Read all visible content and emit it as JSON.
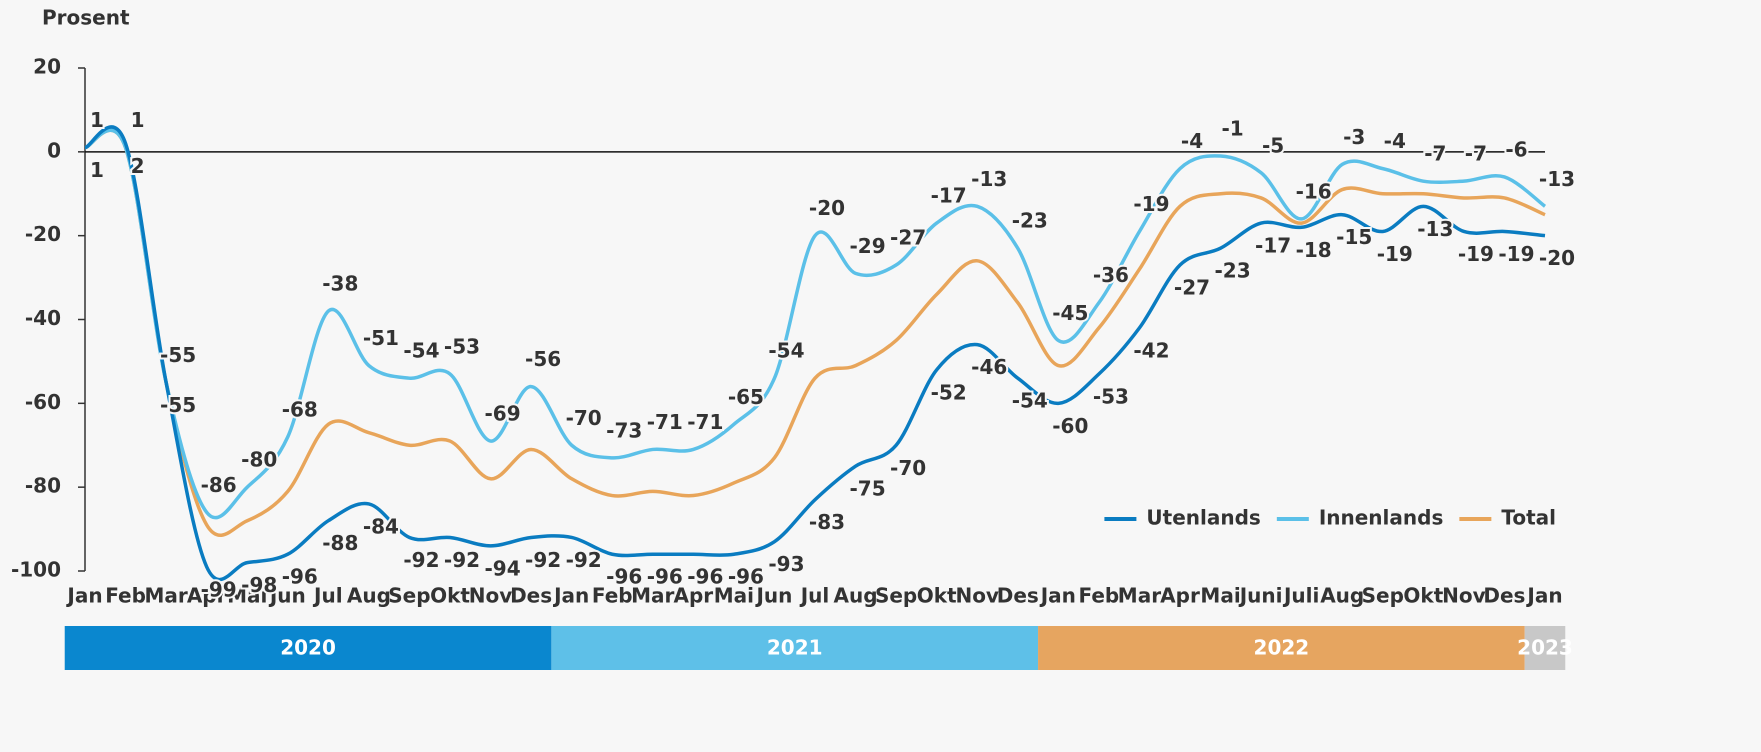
{
  "chart_data": {
    "type": "line",
    "ylabel": "Prosent",
    "categories": [
      "Jan",
      "Feb",
      "Mar",
      "Apr",
      "Mai",
      "Jun",
      "Jul",
      "Aug",
      "Sep",
      "Okt",
      "Nov",
      "Des",
      "Jan",
      "Feb",
      "Mar",
      "Apr",
      "Mai",
      "Jun",
      "Jul",
      "Aug",
      "Sep",
      "Okt",
      "Nov",
      "Des",
      "Jan",
      "Feb",
      "Mar",
      "Apr",
      "Mai",
      "Juni",
      "Juli",
      "Aug",
      "Sep",
      "Okt",
      "Nov",
      "Des",
      "Jan"
    ],
    "groups": [
      {
        "label": "2020",
        "start": 0,
        "end": 11,
        "color": "#0a87cf"
      },
      {
        "label": "2021",
        "start": 12,
        "end": 23,
        "color": "#5ec0e8"
      },
      {
        "label": "2022",
        "start": 24,
        "end": 35,
        "color": "#e6a560"
      },
      {
        "label": "2023",
        "start": 36,
        "end": 36,
        "color": "#c8c8c8"
      }
    ],
    "series": [
      {
        "name": "Utenlands",
        "color": "#0a7cc1",
        "labels": "below",
        "values": [
          1,
          2,
          -55,
          -99,
          -98,
          -96,
          -88,
          -84,
          -92,
          -92,
          -94,
          -92,
          -92,
          -96,
          -96,
          -96,
          -96,
          -93,
          -83,
          -75,
          -70,
          -52,
          -46,
          -54,
          -60,
          -53,
          -42,
          -27,
          -23,
          -17,
          -18,
          -15,
          -19,
          -13,
          -19,
          -19,
          -20
        ]
      },
      {
        "name": "Innenlands",
        "color": "#5bc0e8",
        "labels": "above",
        "values": [
          1,
          1,
          -55,
          -86,
          -80,
          -68,
          -38,
          -51,
          -54,
          -53,
          -69,
          -56,
          -70,
          -73,
          -71,
          -71,
          -65,
          -54,
          -20,
          -29,
          -27,
          -17,
          -13,
          -23,
          -45,
          -36,
          -19,
          -4,
          -1,
          -5,
          -16,
          -3,
          -4,
          -7,
          -7,
          -6,
          -13
        ]
      },
      {
        "name": "Total",
        "color": "#e8a55a",
        "labels": "none",
        "values": [
          1,
          1,
          -55,
          -89,
          -88,
          -81,
          -65,
          -67,
          -70,
          -69,
          -78,
          -71,
          -78,
          -82,
          -81,
          -82,
          -79,
          -73,
          -54,
          -51,
          -45,
          -34,
          -26,
          -36,
          -51,
          -42,
          -28,
          -13,
          -10,
          -11,
          -17,
          -9,
          -10,
          -10,
          -11,
          -11,
          -15
        ]
      }
    ],
    "ylim": [
      -100,
      20
    ],
    "yticks": [
      -100,
      -80,
      -60,
      -40,
      -20,
      0,
      20
    ],
    "legend": "bottom-right"
  }
}
